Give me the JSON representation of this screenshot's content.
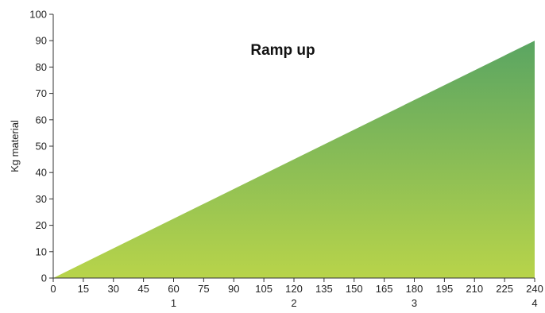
{
  "chart_data": {
    "type": "area",
    "title": "Ramp up",
    "xlabel": "",
    "ylabel": "Kg material",
    "x_ticks": [
      "0",
      "15",
      "30",
      "45",
      "60",
      "75",
      "90",
      "105",
      "120",
      "135",
      "150",
      "165",
      "180",
      "195",
      "210",
      "225",
      "240"
    ],
    "x_secondary_ticks": [
      {
        "x": 60,
        "label": "1"
      },
      {
        "x": 120,
        "label": "2"
      },
      {
        "x": 180,
        "label": "3"
      },
      {
        "x": 240,
        "label": "4"
      }
    ],
    "y_ticks": [
      "0",
      "10",
      "20",
      "30",
      "40",
      "50",
      "60",
      "70",
      "80",
      "90",
      "100"
    ],
    "xlim": [
      0,
      240
    ],
    "ylim": [
      0,
      100
    ],
    "grid": false,
    "series": [
      {
        "x": [
          0,
          240
        ],
        "y": [
          0,
          90
        ]
      }
    ],
    "colors": {
      "fill_bottom": "#b8d44a",
      "fill_top": "#5aa562",
      "axis": "#333333"
    }
  }
}
